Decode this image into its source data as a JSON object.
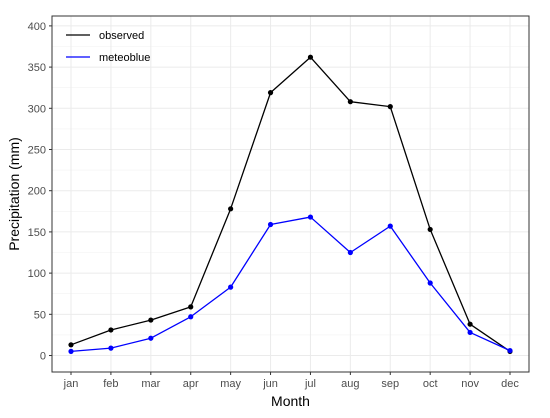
{
  "chart_data": {
    "type": "line",
    "title": "",
    "xlabel": "Month",
    "ylabel": "Precipitation (mm)",
    "categories": [
      "jan",
      "feb",
      "mar",
      "apr",
      "may",
      "jun",
      "jul",
      "aug",
      "sep",
      "oct",
      "nov",
      "dec"
    ],
    "ylim": [
      -20,
      412
    ],
    "yticks": [
      0,
      50,
      100,
      150,
      200,
      250,
      300,
      350,
      400
    ],
    "grid": true,
    "legend_position": "top-left",
    "series": [
      {
        "name": "observed",
        "color": "#000000",
        "values": [
          13,
          31,
          43,
          59,
          178,
          319,
          362,
          308,
          302,
          153,
          38,
          5
        ]
      },
      {
        "name": "meteoblue",
        "color": "#0000ff",
        "values": [
          5,
          9,
          21,
          47,
          83,
          159,
          168,
          125,
          157,
          88,
          28,
          6
        ]
      }
    ]
  }
}
